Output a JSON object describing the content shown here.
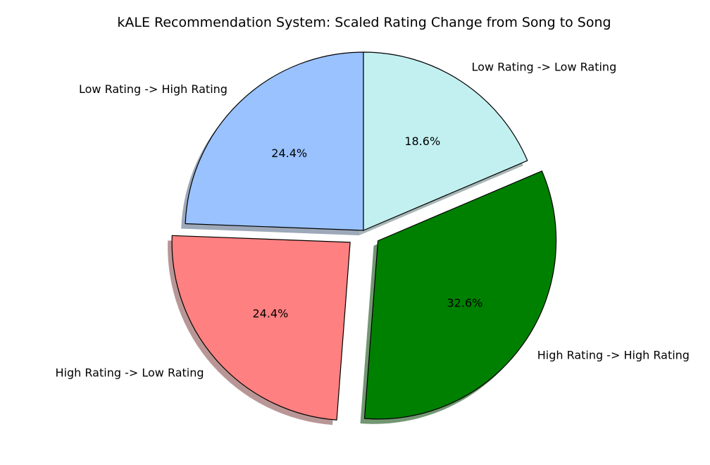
{
  "chart_data": {
    "type": "pie",
    "title": "kALE Recommendation System: Scaled Rating Change from Song to Song",
    "start_angle_deg": 90,
    "direction": "counterclockwise",
    "shadow": true,
    "edge_color": "#000000",
    "slices": [
      {
        "label": "Low Rating -> High Rating",
        "value": 24.4,
        "pct_label": "24.4%",
        "color": "#99c2ff",
        "explode": 0.0
      },
      {
        "label": "High Rating -> Low Rating",
        "value": 24.4,
        "pct_label": "24.4%",
        "color": "#ff8080",
        "explode": 0.1
      },
      {
        "label": "High Rating -> High Rating",
        "value": 32.6,
        "pct_label": "32.6%",
        "color": "#008000",
        "explode": 0.1
      },
      {
        "label": "Low Rating -> Low Rating",
        "value": 18.6,
        "pct_label": "18.6%",
        "color": "#c2f0f0",
        "explode": 0.0
      }
    ]
  }
}
